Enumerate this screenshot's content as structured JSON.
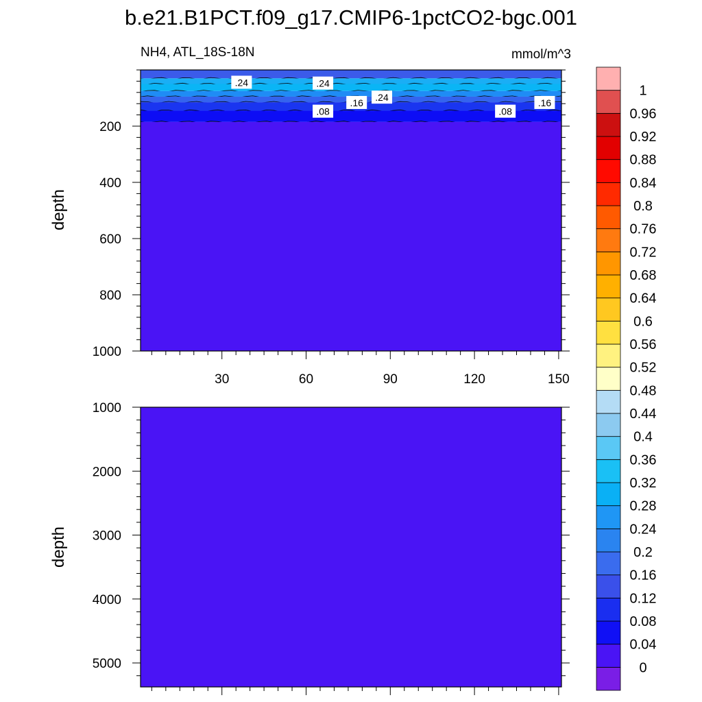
{
  "title": "b.e21.B1PCT.f09_g17.CMIP6-1pctCO2-bgc.001",
  "subtitle_left": "NH4, ATL_18S-18N",
  "subtitle_right": "mmol/m^3",
  "chart_data": {
    "type": "heatmap",
    "variable": "NH4",
    "region": "ATL_18S-18N",
    "units": "mmol/m^3",
    "x_ticks": [
      "30",
      "60",
      "90",
      "120",
      "150"
    ],
    "x_tick_values": [
      30,
      60,
      90,
      120,
      150
    ],
    "xlim": [
      1,
      151
    ],
    "panels": [
      {
        "name": "upper",
        "ylabel": "depth",
        "ylim": [
          0,
          1000
        ],
        "y_ticks": [
          "200",
          "400",
          "600",
          "800",
          "1000"
        ],
        "y_tick_values": [
          200,
          400,
          600,
          800,
          1000
        ],
        "bands": [
          {
            "top": 0,
            "bottom": 30,
            "value": 0.12,
            "color": "#3b5bea"
          },
          {
            "top": 30,
            "bottom": 50,
            "value": 0.28,
            "color": "#1aaef5"
          },
          {
            "top": 50,
            "bottom": 75,
            "value": 0.32,
            "color": "#0ab5f5"
          },
          {
            "top": 75,
            "bottom": 95,
            "value": 0.24,
            "color": "#1f8cf5"
          },
          {
            "top": 95,
            "bottom": 115,
            "value": 0.16,
            "color": "#3464ee"
          },
          {
            "top": 115,
            "bottom": 145,
            "value": 0.1,
            "color": "#1a35f0"
          },
          {
            "top": 145,
            "bottom": 185,
            "value": 0.06,
            "color": "#0d0df5"
          },
          {
            "top": 185,
            "bottom": 1000,
            "value": 0.02,
            "color": "#4a14f5"
          }
        ],
        "contour_labels": [
          {
            "text": ".24",
            "x": 37,
            "depth": 45
          },
          {
            "text": ".24",
            "x": 66,
            "depth": 48
          },
          {
            "text": ".24",
            "x": 87,
            "depth": 98
          },
          {
            "text": ".16",
            "x": 78,
            "depth": 117
          },
          {
            "text": ".16",
            "x": 145,
            "depth": 117
          },
          {
            "text": ".08",
            "x": 66,
            "depth": 148
          },
          {
            "text": ".08",
            "x": 131,
            "depth": 148
          }
        ]
      },
      {
        "name": "lower",
        "ylabel": "depth",
        "ylim": [
          1000,
          5375
        ],
        "y_ticks": [
          "1000",
          "2000",
          "3000",
          "4000",
          "5000"
        ],
        "y_tick_values": [
          1000,
          2000,
          3000,
          4000,
          5000
        ],
        "bands": [
          {
            "top": 1000,
            "bottom": 5375,
            "value": 0.02,
            "color": "#4a14f5"
          }
        ],
        "contour_labels": []
      }
    ],
    "colorbar": {
      "labels": [
        "0",
        "0.04",
        "0.08",
        "0.12",
        "0.16",
        "0.2",
        "0.24",
        "0.28",
        "0.32",
        "0.36",
        "0.4",
        "0.44",
        "0.48",
        "0.52",
        "0.56",
        "0.6",
        "0.64",
        "0.68",
        "0.72",
        "0.76",
        "0.8",
        "0.84",
        "0.88",
        "0.92",
        "0.96",
        "1"
      ],
      "colors": [
        "#7a1ee6",
        "#4a14f5",
        "#1010f5",
        "#1a2ef0",
        "#3a50ea",
        "#3a6cee",
        "#2a84f0",
        "#1f96f5",
        "#0ab0f5",
        "#1ac0f5",
        "#5ac8f5",
        "#8ccaf0",
        "#b4dcf5",
        "#ffffc8",
        "#fff280",
        "#ffe040",
        "#ffc820",
        "#ffb000",
        "#ff9600",
        "#ff7a10",
        "#ff5a00",
        "#ff2a00",
        "#ff0a00",
        "#e20000",
        "#cc1010",
        "#e05050",
        "#ffb0b0"
      ]
    }
  }
}
